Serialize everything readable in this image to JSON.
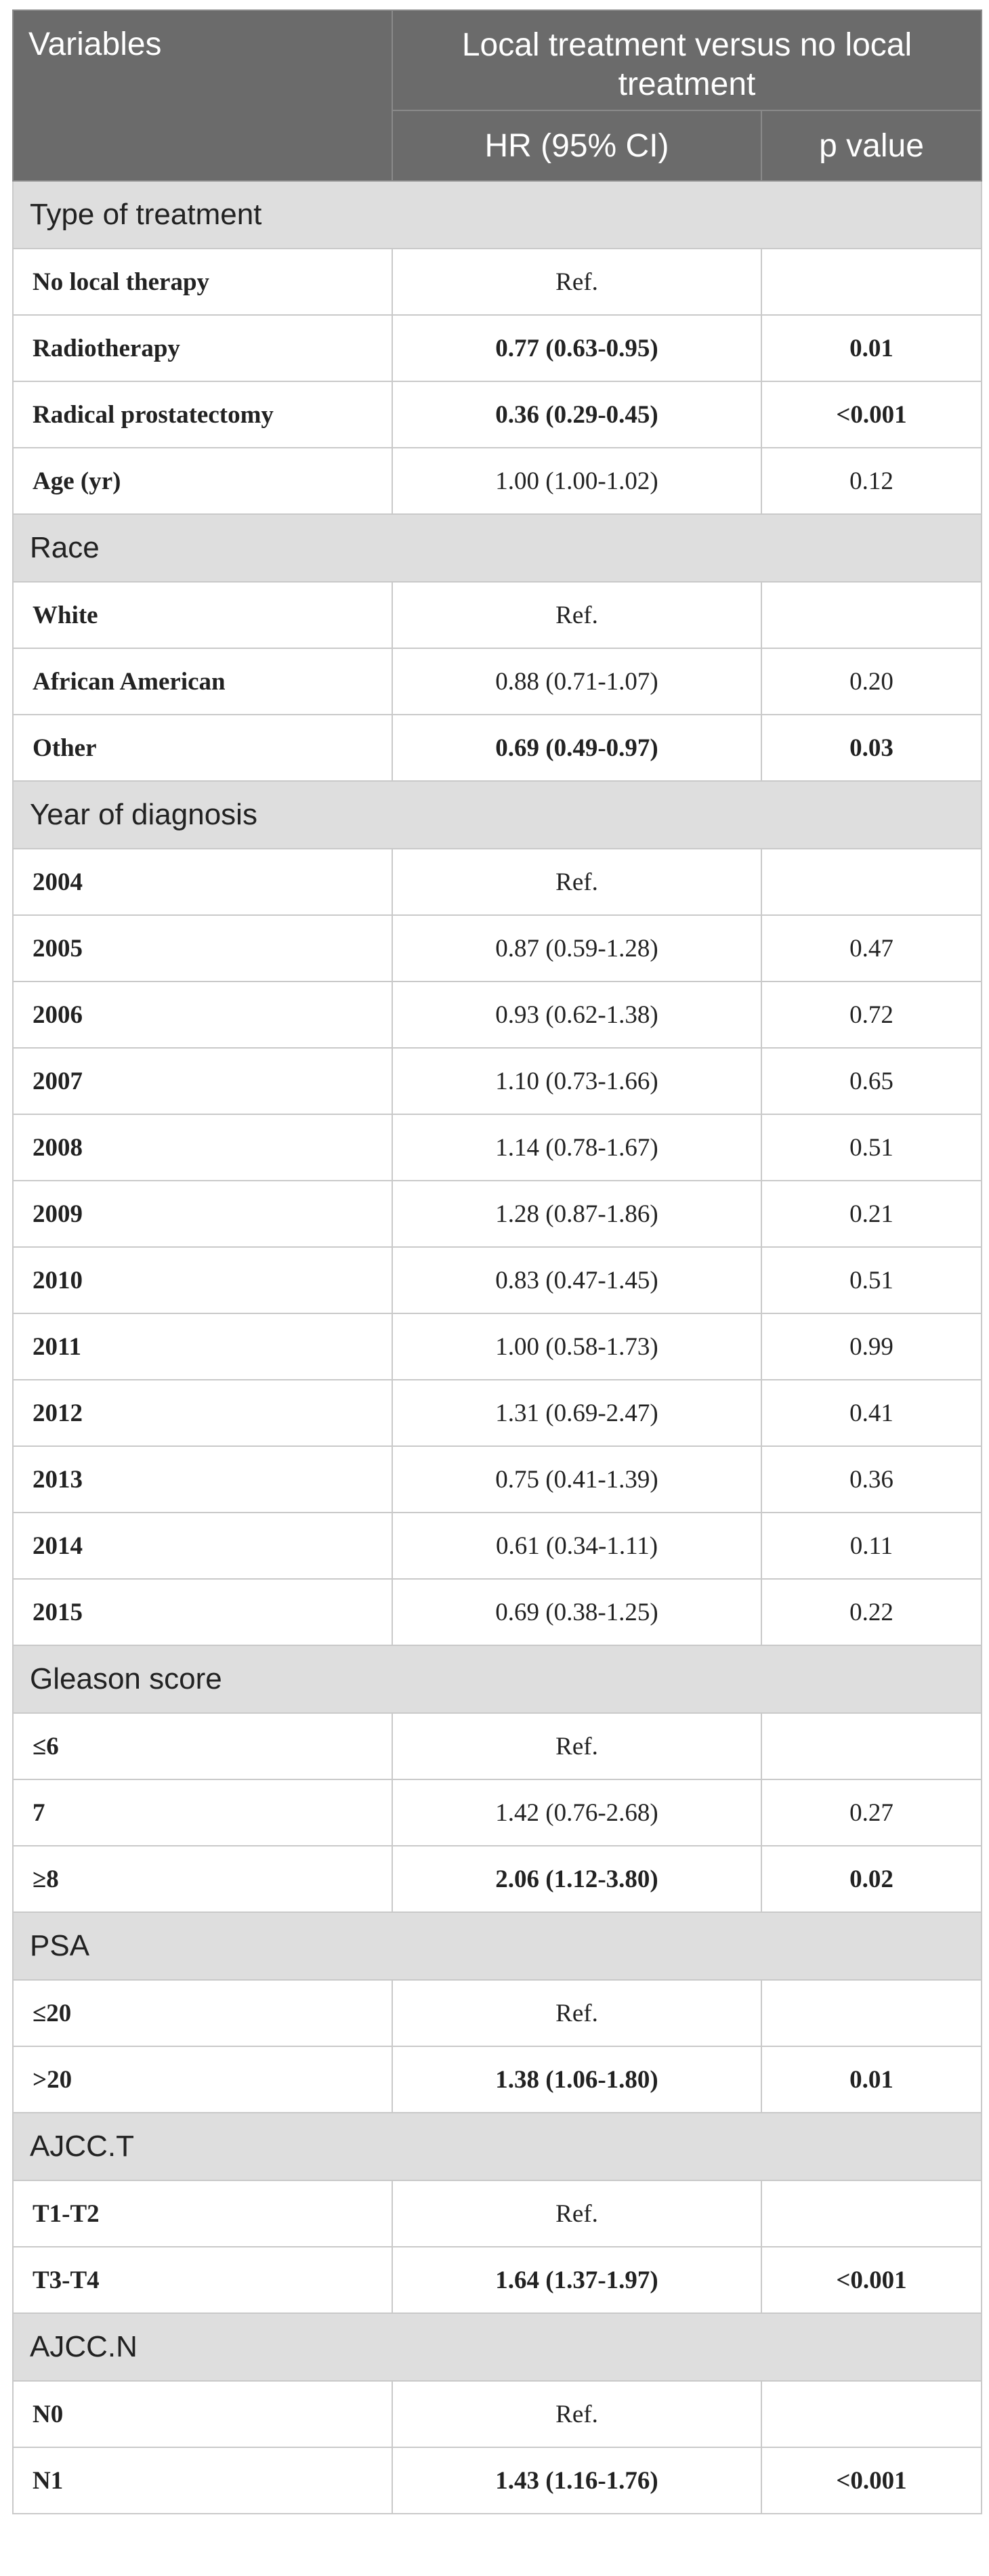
{
  "header": {
    "variables_label": "Variables",
    "group_label": "Local treatment versus no local treatment",
    "hr_label": "HR (95% CI)",
    "p_label": "p value"
  },
  "sections": [
    {
      "title": "Type of treatment",
      "rows": [
        {
          "variable": "No local therapy",
          "hr": "Ref.",
          "p": "",
          "bold": false
        },
        {
          "variable": "Radiotherapy",
          "hr": "0.77 (0.63-0.95)",
          "p": "0.01",
          "bold": true
        },
        {
          "variable": "Radical prostatectomy",
          "hr": "0.36 (0.29-0.45)",
          "p": "<0.001",
          "bold": true
        },
        {
          "variable": "Age (yr)",
          "hr": "1.00 (1.00-1.02)",
          "p": "0.12",
          "bold": false
        }
      ]
    },
    {
      "title": "Race",
      "rows": [
        {
          "variable": "White",
          "hr": "Ref.",
          "p": "",
          "bold": false
        },
        {
          "variable": "African American",
          "hr": "0.88 (0.71-1.07)",
          "p": "0.20",
          "bold": false
        },
        {
          "variable": "Other",
          "hr": "0.69 (0.49-0.97)",
          "p": "0.03",
          "bold": true
        }
      ]
    },
    {
      "title": "Year of diagnosis",
      "rows": [
        {
          "variable": "2004",
          "hr": "Ref.",
          "p": "",
          "bold": false
        },
        {
          "variable": "2005",
          "hr": "0.87 (0.59-1.28)",
          "p": "0.47",
          "bold": false
        },
        {
          "variable": "2006",
          "hr": "0.93 (0.62-1.38)",
          "p": "0.72",
          "bold": false
        },
        {
          "variable": "2007",
          "hr": "1.10 (0.73-1.66)",
          "p": "0.65",
          "bold": false
        },
        {
          "variable": "2008",
          "hr": "1.14 (0.78-1.67)",
          "p": "0.51",
          "bold": false
        },
        {
          "variable": "2009",
          "hr": "1.28 (0.87-1.86)",
          "p": "0.21",
          "bold": false
        },
        {
          "variable": "2010",
          "hr": "0.83 (0.47-1.45)",
          "p": "0.51",
          "bold": false
        },
        {
          "variable": "2011",
          "hr": "1.00 (0.58-1.73)",
          "p": "0.99",
          "bold": false
        },
        {
          "variable": "2012",
          "hr": "1.31 (0.69-2.47)",
          "p": "0.41",
          "bold": false
        },
        {
          "variable": "2013",
          "hr": "0.75 (0.41-1.39)",
          "p": "0.36",
          "bold": false
        },
        {
          "variable": "2014",
          "hr": "0.61 (0.34-1.11)",
          "p": "0.11",
          "bold": false
        },
        {
          "variable": "2015",
          "hr": "0.69 (0.38-1.25)",
          "p": "0.22",
          "bold": false
        }
      ]
    },
    {
      "title": "Gleason score",
      "rows": [
        {
          "variable": "≤6",
          "hr": "Ref.",
          "p": "",
          "bold": false
        },
        {
          "variable": "7",
          "hr": "1.42 (0.76-2.68)",
          "p": "0.27",
          "bold": false
        },
        {
          "variable": "≥8",
          "hr": "2.06 (1.12-3.80)",
          "p": "0.02",
          "bold": true
        }
      ]
    },
    {
      "title": "PSA",
      "rows": [
        {
          "variable": "≤20",
          "hr": "Ref.",
          "p": "",
          "bold": false
        },
        {
          "variable": ">20",
          "hr": "1.38 (1.06-1.80)",
          "p": "0.01",
          "bold": true
        }
      ]
    },
    {
      "title": "AJCC.T",
      "rows": [
        {
          "variable": "T1-T2",
          "hr": "Ref.",
          "p": "",
          "bold": false
        },
        {
          "variable": "T3-T4",
          "hr": "1.64 (1.37-1.97)",
          "p": "<0.001",
          "bold": true
        }
      ]
    },
    {
      "title": "AJCC.N",
      "rows": [
        {
          "variable": "N0",
          "hr": "Ref.",
          "p": "",
          "bold": false
        },
        {
          "variable": "N1",
          "hr": "1.43 (1.16-1.76)",
          "p": "<0.001",
          "bold": true
        }
      ]
    }
  ]
}
